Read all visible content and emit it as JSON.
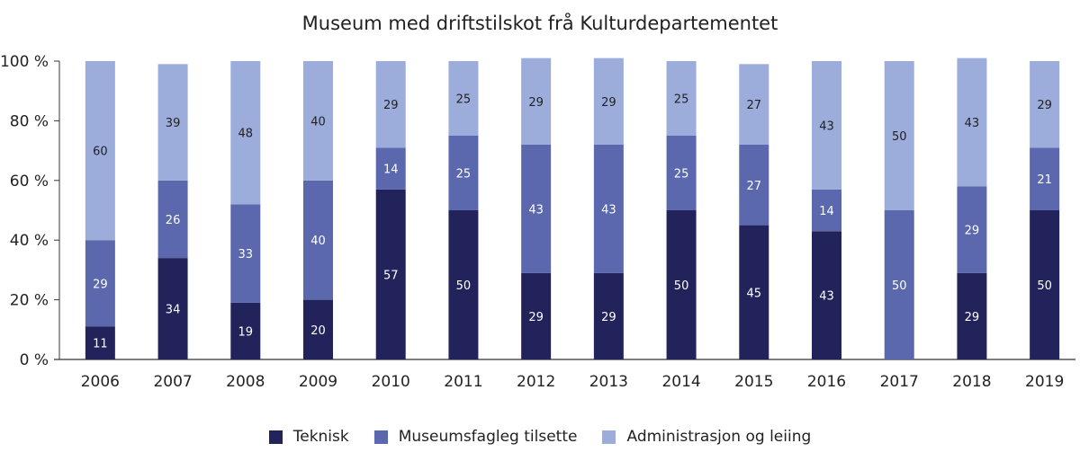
{
  "chart_data": {
    "type": "bar",
    "stacked": true,
    "title": "Museum med driftstilskot frå Kulturdepartementet",
    "categories": [
      "2006",
      "2007",
      "2008",
      "2009",
      "2010",
      "2011",
      "2012",
      "2013",
      "2014",
      "2015",
      "2016",
      "2017",
      "2018",
      "2019"
    ],
    "series": [
      {
        "name": "Teknisk",
        "color": "#23235c",
        "values": [
          11,
          34,
          19,
          20,
          57,
          50,
          29,
          29,
          50,
          45,
          43,
          0,
          29,
          50
        ]
      },
      {
        "name": "Museumsfagleg tilsette",
        "color": "#5b68ad",
        "values": [
          29,
          26,
          33,
          40,
          14,
          25,
          43,
          43,
          25,
          27,
          14,
          50,
          29,
          21
        ]
      },
      {
        "name": "Administrasjon og leiing",
        "color": "#9cacdb",
        "values": [
          60,
          39,
          48,
          40,
          29,
          25,
          29,
          29,
          25,
          27,
          43,
          50,
          43,
          29
        ]
      }
    ],
    "ylim": [
      0,
      100
    ],
    "yticks": [
      "0 %",
      "20 %",
      "40 %",
      "60 %",
      "80 %",
      "100 %"
    ],
    "ytick_values": [
      0,
      20,
      40,
      60,
      80,
      100
    ],
    "legend_position": "bottom",
    "grid": false
  }
}
